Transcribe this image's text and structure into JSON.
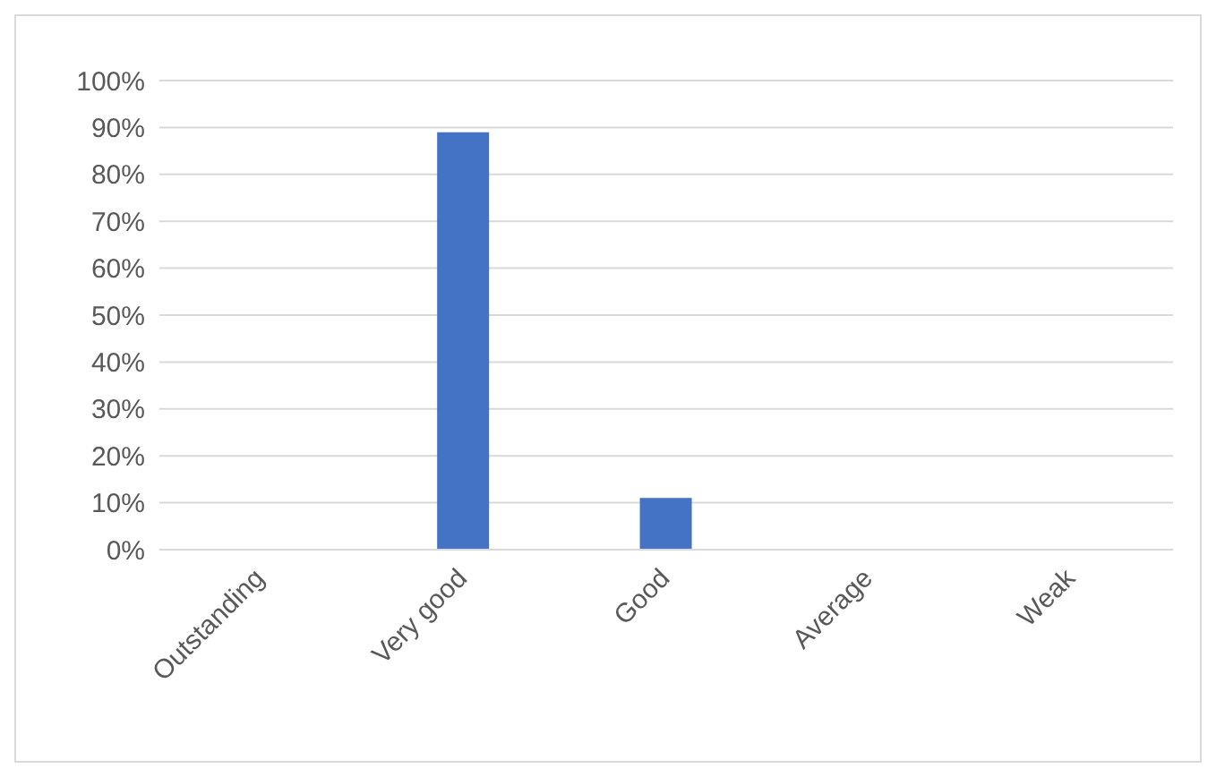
{
  "chart_data": {
    "type": "bar",
    "categories": [
      "Outstanding",
      "Very good",
      "Good",
      "Average",
      "Weak"
    ],
    "values": [
      0,
      89,
      11,
      0,
      0
    ],
    "color": "#4472c4",
    "ylim": [
      0,
      100
    ],
    "yticks": [
      {
        "value": 0,
        "label": "0%"
      },
      {
        "value": 10,
        "label": "10%"
      },
      {
        "value": 20,
        "label": "20%"
      },
      {
        "value": 30,
        "label": "30%"
      },
      {
        "value": 40,
        "label": "40%"
      },
      {
        "value": 50,
        "label": "50%"
      },
      {
        "value": 60,
        "label": "60%"
      },
      {
        "value": 70,
        "label": "70%"
      },
      {
        "value": 80,
        "label": "80%"
      },
      {
        "value": 90,
        "label": "90%"
      },
      {
        "value": 100,
        "label": "100%"
      }
    ],
    "grid": "y"
  }
}
